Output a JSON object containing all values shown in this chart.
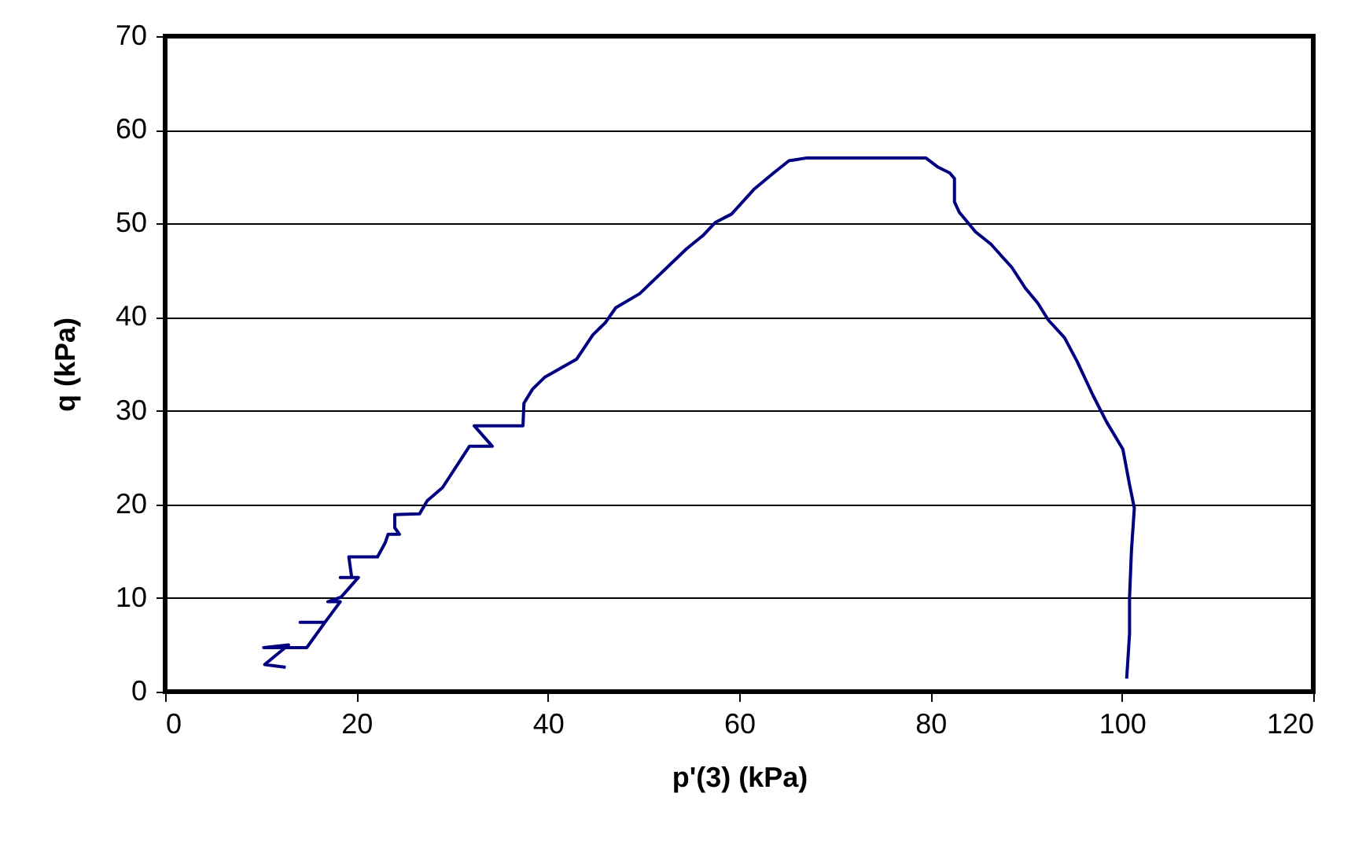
{
  "chart_data": {
    "type": "line",
    "xlabel": "p'(3) (kPa)",
    "ylabel": "q (kPa)",
    "xlim": [
      0,
      120
    ],
    "xticks": [
      0,
      20,
      40,
      60,
      80,
      100,
      120
    ],
    "ylim": [
      0,
      70
    ],
    "yticks": [
      0,
      10,
      20,
      30,
      40,
      50,
      60,
      70
    ],
    "grid": "y",
    "series": [
      {
        "color": "#000080",
        "x": [
          12.6,
          10.4,
          12.9,
          10.3,
          14.8,
          16.7,
          14.1,
          16.7,
          18.3,
          17.0,
          18.4,
          20.2,
          18.3,
          19.5,
          19.2,
          22.2,
          23.0,
          23.3,
          24.5,
          24.0,
          24.0,
          26.6,
          27.4,
          29.0,
          31.8,
          34.2,
          32.3,
          37.4,
          37.5,
          38.4,
          39.7,
          43.0,
          44.7,
          46.0,
          47.1,
          49.6,
          54.5,
          56.2,
          57.5,
          59.2,
          61.6,
          63.6,
          65.2,
          67.1,
          79.5,
          80.8,
          82.0,
          82.5,
          82.5,
          83.0,
          84.7,
          86.3,
          88.5,
          89.9,
          91.2,
          92.3,
          94.0,
          95.3,
          97.0,
          98.4,
          100.1,
          100.8,
          101.3,
          101.0,
          100.8,
          100.8,
          100.5
        ],
        "values": [
          2.6,
          2.9,
          5.0,
          4.7,
          4.7,
          7.4,
          7.4,
          7.4,
          9.6,
          9.6,
          10.1,
          12.2,
          12.2,
          12.2,
          14.4,
          14.4,
          15.9,
          16.8,
          16.8,
          17.5,
          18.9,
          19.0,
          20.4,
          21.8,
          26.2,
          26.2,
          28.4,
          28.4,
          30.8,
          32.3,
          33.6,
          35.5,
          38.1,
          39.4,
          41.0,
          42.5,
          47.3,
          48.7,
          50.1,
          51.0,
          53.7,
          55.4,
          56.7,
          57.0,
          57.0,
          56.0,
          55.4,
          54.8,
          52.3,
          51.2,
          49.1,
          47.8,
          45.3,
          43.1,
          41.5,
          39.7,
          37.8,
          35.3,
          31.6,
          28.8,
          25.9,
          22.1,
          19.6,
          15.1,
          10.1,
          6.2,
          1.4
        ]
      }
    ]
  }
}
